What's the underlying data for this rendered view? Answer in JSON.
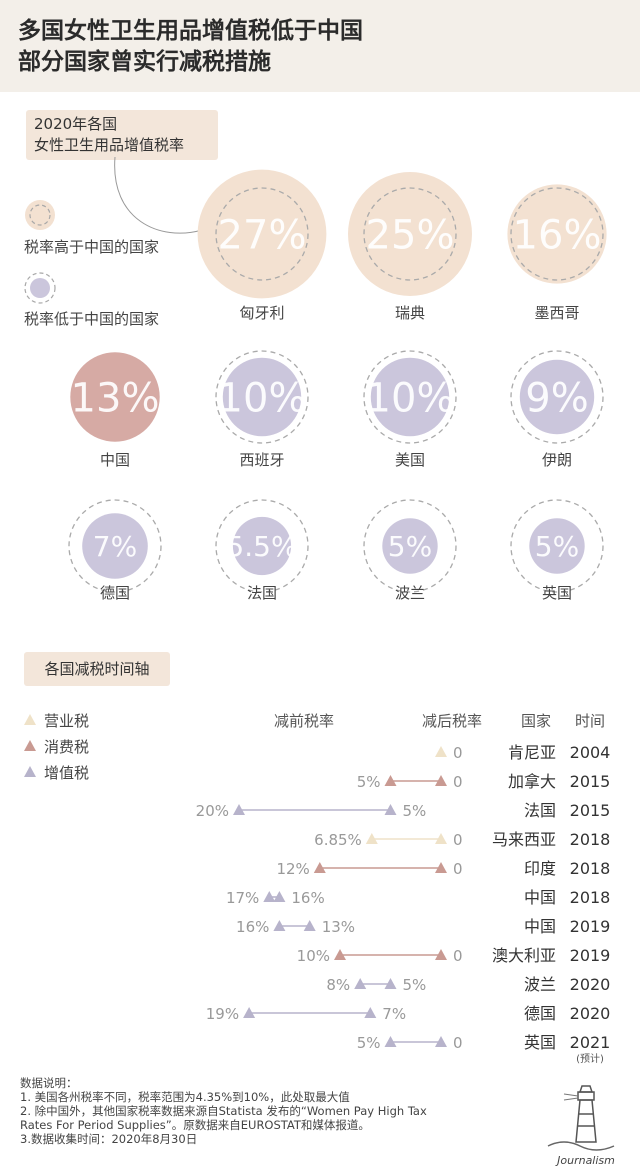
{
  "title_lines": [
    "多国女性卫生用品增值税低于中国",
    "部分国家曾实行减税措施"
  ],
  "subtitle_lines": [
    "2020年各国",
    "女性卫生用品增值税率"
  ],
  "legend": {
    "higher": "税率高于中国的国家",
    "lower": "税率低于中国的国家"
  },
  "colors": {
    "higher": "#f3e1d1",
    "china": "#d6aaa4",
    "lower": "#cbc6dc",
    "sales_tax": "#efe2c8",
    "consumption_tax": "#c99a92",
    "vat": "#b7b3cb",
    "text_light": "#999999",
    "text_dark": "#333333"
  },
  "timeline_title": "各国减税时间轴",
  "timeline_legend": [
    "营业税",
    "消费税",
    "增值税"
  ],
  "timeline_headers": {
    "before": "减前税率",
    "after": "减后税率",
    "country": "国家",
    "time": "时间"
  },
  "notes": [
    "数据说明：",
    "1. 美国各州税率不同，税率范围为4.35%到10%，此处取最大值",
    "2. 除中国外，其他国家税率数据来源自Statista 发布的“Women Pay High Tax",
    "Rates For Period Supplies”。原数据来自EUROSTAT和媒体报道。",
    "3.数据收集时间：2020年8月30日"
  ],
  "logo_text": "Journalism",
  "chart_data": [
    {
      "type": "bubble",
      "title": "2020年各国女性卫生用品增值税率",
      "categories": [
        "匈牙利",
        "瑞典",
        "墨西哥",
        "中国",
        "西班牙",
        "美国",
        "伊朗",
        "德国",
        "法国",
        "波兰",
        "英国"
      ],
      "values": [
        27,
        25,
        16,
        13,
        10,
        10,
        9,
        7,
        5.5,
        5,
        5
      ],
      "labels": [
        "27%",
        "25%",
        "16%",
        "13%",
        "10%",
        "10%",
        "9%",
        "7%",
        "5.5%",
        "5%",
        "5%"
      ],
      "group": [
        "higher",
        "higher",
        "higher",
        "china",
        "lower",
        "lower",
        "lower",
        "lower",
        "lower",
        "lower",
        "lower"
      ],
      "reference": {
        "country": "中国",
        "value": 13
      }
    },
    {
      "type": "dumbbell",
      "title": "各国减税时间轴",
      "rows": [
        {
          "country": "肯尼亚",
          "year": "2004",
          "tax": "营业税",
          "before": null,
          "after": 0,
          "before_label": "",
          "after_label": "0",
          "note": ""
        },
        {
          "country": "加拿大",
          "year": "2015",
          "tax": "消费税",
          "before": 5,
          "after": 0,
          "before_label": "5%",
          "after_label": "0",
          "note": ""
        },
        {
          "country": "法国",
          "year": "2015",
          "tax": "增值税",
          "before": 20,
          "after": 5,
          "before_label": "20%",
          "after_label": "5%",
          "note": ""
        },
        {
          "country": "马来西亚",
          "year": "2018",
          "tax": "营业税",
          "before": 6.85,
          "after": 0,
          "before_label": "6.85%",
          "after_label": "0",
          "note": ""
        },
        {
          "country": "印度",
          "year": "2018",
          "tax": "消费税",
          "before": 12,
          "after": 0,
          "before_label": "12%",
          "after_label": "0",
          "note": ""
        },
        {
          "country": "中国",
          "year": "2018",
          "tax": "增值税",
          "before": 17,
          "after": 16,
          "before_label": "17%",
          "after_label": "16%",
          "note": ""
        },
        {
          "country": "中国",
          "year": "2019",
          "tax": "增值税",
          "before": 16,
          "after": 13,
          "before_label": "16%",
          "after_label": "13%",
          "note": ""
        },
        {
          "country": "澳大利亚",
          "year": "2019",
          "tax": "消费税",
          "before": 10,
          "after": 0,
          "before_label": "10%",
          "after_label": "0",
          "note": ""
        },
        {
          "country": "波兰",
          "year": "2020",
          "tax": "增值税",
          "before": 8,
          "after": 5,
          "before_label": "8%",
          "after_label": "5%",
          "note": ""
        },
        {
          "country": "德国",
          "year": "2020",
          "tax": "增值税",
          "before": 19,
          "after": 7,
          "before_label": "19%",
          "after_label": "7%",
          "note": ""
        },
        {
          "country": "英国",
          "year": "2021",
          "tax": "增值税",
          "before": 5,
          "after": 0,
          "before_label": "5%",
          "after_label": "0",
          "note": "(预计)"
        }
      ]
    }
  ]
}
